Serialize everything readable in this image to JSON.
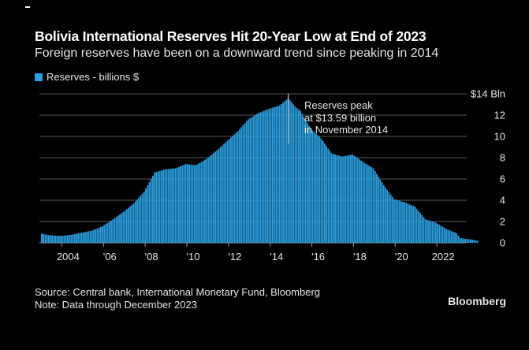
{
  "header": {
    "title": "Bolivia International Reserves Hit 20-Year Low at End of 2023",
    "subtitle": "Foreign reserves have been on a downward trend since peaking in 2014"
  },
  "footer": {
    "source": "Source: Central bank, International Monetary Fund, Bloomberg",
    "note": "Note: Data through December 2023",
    "brand": "Bloomberg"
  },
  "colors": {
    "background": "#000000",
    "bar": "#2a9fe0",
    "grid": "#5a5a5a",
    "text": "#e6e6e6"
  },
  "chart_data": {
    "type": "bar",
    "title": "",
    "xlabel": "",
    "ylabel": "",
    "frequency": "monthly",
    "start": "2003-01",
    "end": "2023-12",
    "legend": {
      "label": "Reserves - billions $",
      "position": "top-left"
    },
    "ylim": [
      0,
      14
    ],
    "yticks": [
      0,
      2,
      4,
      6,
      8,
      10,
      12,
      14
    ],
    "ytick_labels": [
      "0",
      "2",
      "4",
      "6",
      "8",
      "10",
      "12",
      "$14 Bln"
    ],
    "xtick_labels": [
      "2004",
      "'06",
      "'08",
      "'10",
      "'12",
      "'14",
      "'16",
      "'18",
      "'20",
      "2022"
    ],
    "grid": true,
    "annotation": {
      "line1": "Reserves peak",
      "line2": "at $13.59 billion",
      "line3": "in November 2014",
      "peak_month": "2014-11",
      "peak_value": 13.59
    },
    "anchors": [
      [
        "2003-01",
        0.85
      ],
      [
        "2003-06",
        0.7
      ],
      [
        "2003-12",
        0.65
      ],
      [
        "2004-06",
        0.75
      ],
      [
        "2004-12",
        0.95
      ],
      [
        "2005-06",
        1.15
      ],
      [
        "2005-12",
        1.55
      ],
      [
        "2006-06",
        2.2
      ],
      [
        "2006-12",
        2.9
      ],
      [
        "2007-06",
        3.7
      ],
      [
        "2007-12",
        4.8
      ],
      [
        "2008-06",
        6.6
      ],
      [
        "2008-12",
        6.9
      ],
      [
        "2009-06",
        7.0
      ],
      [
        "2009-12",
        7.4
      ],
      [
        "2010-06",
        7.3
      ],
      [
        "2010-12",
        7.9
      ],
      [
        "2011-06",
        8.7
      ],
      [
        "2011-12",
        9.6
      ],
      [
        "2012-06",
        10.5
      ],
      [
        "2012-12",
        11.6
      ],
      [
        "2013-06",
        12.2
      ],
      [
        "2013-12",
        12.6
      ],
      [
        "2014-06",
        12.9
      ],
      [
        "2014-11",
        13.59
      ],
      [
        "2015-03",
        12.8
      ],
      [
        "2015-06",
        12.4
      ],
      [
        "2015-12",
        10.7
      ],
      [
        "2016-06",
        9.8
      ],
      [
        "2016-12",
        8.4
      ],
      [
        "2017-06",
        8.1
      ],
      [
        "2017-12",
        8.3
      ],
      [
        "2018-06",
        7.6
      ],
      [
        "2018-12",
        7.0
      ],
      [
        "2019-06",
        5.4
      ],
      [
        "2019-12",
        4.1
      ],
      [
        "2020-06",
        3.8
      ],
      [
        "2020-12",
        3.4
      ],
      [
        "2021-06",
        2.2
      ],
      [
        "2021-12",
        1.9
      ],
      [
        "2022-06",
        1.3
      ],
      [
        "2022-12",
        0.9
      ],
      [
        "2023-02",
        0.45
      ],
      [
        "2023-06",
        0.35
      ],
      [
        "2023-09",
        0.3
      ],
      [
        "2023-12",
        0.18
      ]
    ]
  }
}
